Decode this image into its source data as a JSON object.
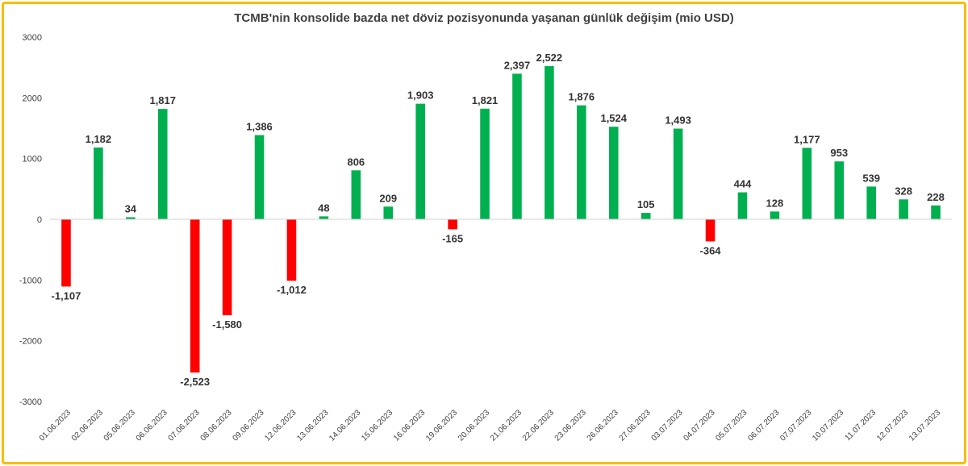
{
  "chart_data": {
    "type": "bar",
    "title": "TCMB'nin konsolide bazda net döviz pozisyonunda yaşanan günlük değişim (mio USD)",
    "xlabel": "",
    "ylabel": "",
    "ylim": [
      -3000,
      3000
    ],
    "y_ticks": [
      "3000",
      "2000",
      "1000",
      "0",
      "-1000",
      "-2000",
      "-3000"
    ],
    "grid": false,
    "legend": "none",
    "positive_color": "#00b050",
    "negative_color": "#ff0000",
    "categories": [
      "01.06.2023",
      "02.06.2023",
      "05.06.2023",
      "06.06.2023",
      "07.06.2023",
      "08.06.2023",
      "09.06.2023",
      "12.06.2023",
      "13.06.2023",
      "14.06.2023",
      "15.06.2023",
      "16.06.2023",
      "19.06.2023",
      "20.06.2023",
      "21.06.2023",
      "22.06.2023",
      "23.06.2023",
      "26.06.2023",
      "27.06.2023",
      "03.07.2023",
      "04.07.2023",
      "05.07.2023",
      "06.07.2023",
      "07.07.2023",
      "10.07.2023",
      "11.07.2023",
      "12.07.2023",
      "13.07.2023"
    ],
    "values": [
      -1107,
      1182,
      34,
      1817,
      -2523,
      -1580,
      1386,
      -1012,
      48,
      806,
      209,
      1903,
      -165,
      1821,
      2397,
      2522,
      1876,
      1524,
      105,
      1493,
      -364,
      444,
      128,
      1177,
      953,
      539,
      328,
      228
    ],
    "data_labels": [
      "-1,107",
      "1,182",
      "34",
      "1,817",
      "-2,523",
      "-1,580",
      "1,386",
      "-1,012",
      "48",
      "806",
      "209",
      "1,903",
      "-165",
      "1,821",
      "2,397",
      "2,522",
      "1,876",
      "1,524",
      "105",
      "1,493",
      "-364",
      "444",
      "128",
      "1,177",
      "953",
      "539",
      "328",
      "228"
    ]
  }
}
